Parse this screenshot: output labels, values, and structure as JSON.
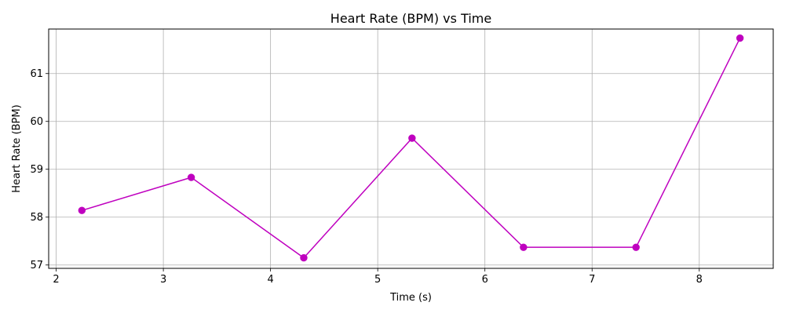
{
  "chart_data": {
    "type": "line",
    "title": "Heart Rate (BPM) vs Time",
    "xlabel": "Time (s)",
    "ylabel": "Heart Rate (BPM)",
    "x": [
      2.24,
      3.26,
      4.31,
      5.32,
      6.36,
      7.41,
      8.38
    ],
    "series": [
      {
        "values": [
          58.14,
          58.83,
          57.15,
          59.65,
          57.37,
          57.37,
          61.74
        ]
      }
    ],
    "xlim": [
      1.93,
      8.69
    ],
    "ylim": [
      56.93,
      61.93
    ],
    "xticks": [
      2,
      3,
      4,
      5,
      6,
      7,
      8
    ],
    "yticks": [
      57,
      58,
      59,
      60,
      61
    ],
    "grid": true,
    "line_color": "#bf00bf",
    "marker": "circle"
  }
}
